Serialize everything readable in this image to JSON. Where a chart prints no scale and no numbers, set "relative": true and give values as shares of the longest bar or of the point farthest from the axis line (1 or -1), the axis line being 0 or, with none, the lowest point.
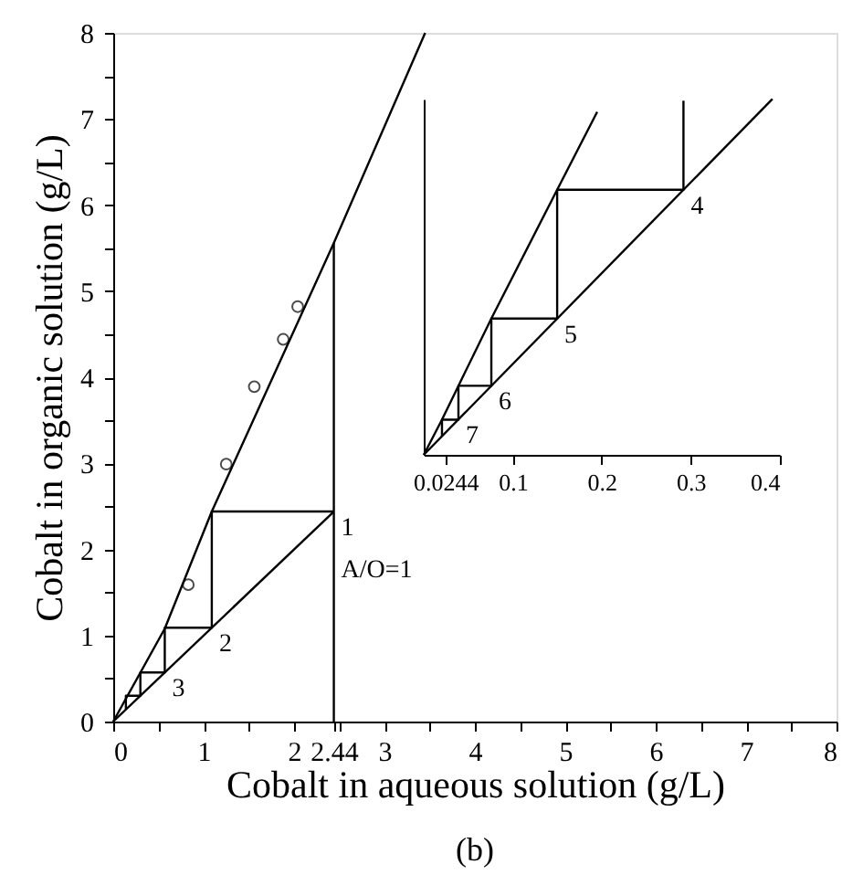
{
  "chart_data": [
    {
      "type": "line",
      "xlabel": "Cobalt in aqueous solution (g/L)",
      "ylabel": "Cobalt in organic solution (g/L)",
      "xlim": [
        0,
        8
      ],
      "ylim": [
        0,
        8
      ],
      "xticks": [
        0,
        {
          "value": 0.5,
          "label": null
        },
        1,
        {
          "value": 1.5,
          "label": null
        },
        2,
        2.44,
        {
          "value": 2.5,
          "label": null
        },
        3,
        {
          "value": 3.5,
          "label": null
        },
        4,
        {
          "value": 4.5,
          "label": null
        },
        5,
        {
          "value": 5.5,
          "label": null
        },
        6,
        {
          "value": 6.5,
          "label": null
        },
        7,
        {
          "value": 7.5,
          "label": null
        },
        8
      ],
      "yticks": [
        0,
        {
          "value": 0.5,
          "label": null
        },
        1,
        {
          "value": 1.5,
          "label": null
        },
        2,
        {
          "value": 2.5,
          "label": null
        },
        3,
        {
          "value": 3.5,
          "label": null
        },
        4,
        {
          "value": 4.5,
          "label": null
        },
        5,
        {
          "value": 5.5,
          "label": null
        },
        6,
        {
          "value": 6.5,
          "label": null
        },
        7,
        {
          "value": 7.5,
          "label": null
        },
        8
      ],
      "grid": false,
      "series": [
        {
          "type": "line",
          "color": "#000000",
          "x": [
            0,
            0.57,
            1.09,
            2.44,
            3.45
          ],
          "values": [
            0,
            1.08,
            2.44,
            5.56,
            8
          ]
        },
        {
          "type": "line",
          "color": "#000000",
          "x": [
            0,
            2.44
          ],
          "values": [
            0,
            2.44
          ]
        },
        {
          "type": "line",
          "color": "#000000",
          "x": [
            2.44,
            1.09,
            1.09,
            0.57,
            0.57,
            0.3,
            0.3,
            0.14,
            0.14
          ],
          "values": [
            2.44,
            2.44,
            1.09,
            1.09,
            0.57,
            0.57,
            0.3,
            0.3,
            0.14
          ]
        },
        {
          "type": "line",
          "color": "#000000",
          "x": [
            2.44,
            2.44
          ],
          "values": [
            0,
            5.56
          ]
        },
        {
          "type": "scatter",
          "marker": "circle",
          "color": "#000000",
          "x": [
            0.83,
            1.25,
            1.56,
            1.88,
            2.04
          ],
          "values": [
            1.59,
            2.99,
            3.89,
            4.44,
            4.82
          ]
        }
      ],
      "annotations": [
        {
          "text": "1",
          "x": 2.44,
          "y": 2.44
        },
        {
          "text": "A/O=1",
          "x": 2.44,
          "y": 1.95
        },
        {
          "text": "2",
          "x": 1.09,
          "y": 1.09
        },
        {
          "text": "3",
          "x": 0.57,
          "y": 0.57
        },
        "(b)"
      ]
    },
    {
      "type": "line",
      "relative": true,
      "xlim": [
        0,
        0.4
      ],
      "xticks": [
        0.0244,
        0.1,
        0.2,
        0.3,
        0.4
      ],
      "tick_labels": "x",
      "grid": false,
      "series": [
        {
          "type": "line",
          "color": "#000000",
          "x": [
            0,
            0.0205,
            0.039,
            0.076,
            0.15,
            0.195
          ],
          "values": [
            0,
            0.099,
            0.194,
            0.383,
            0.745,
            0.964
          ]
        },
        {
          "type": "line",
          "color": "#000000",
          "x": [
            0,
            0.392
          ],
          "values": [
            0,
            1
          ]
        },
        {
          "type": "line",
          "color": "#000000",
          "x": [
            0.292,
            0.292,
            0.15,
            0.15,
            0.076,
            0.076,
            0.039,
            0.039,
            0.0205,
            0.0205
          ],
          "values": [
            0.995,
            0.745,
            0.745,
            0.383,
            0.383,
            0.194,
            0.194,
            0.099,
            0.099,
            0.052
          ]
        }
      ],
      "annotations": [
        {
          "text": "4",
          "x": 0.292,
          "y": 0.745
        },
        {
          "text": "5",
          "x": 0.15,
          "y": 0.383
        },
        {
          "text": "6",
          "x": 0.076,
          "y": 0.194
        },
        {
          "text": "7",
          "x": 0.039,
          "y": 0.099
        }
      ]
    }
  ]
}
